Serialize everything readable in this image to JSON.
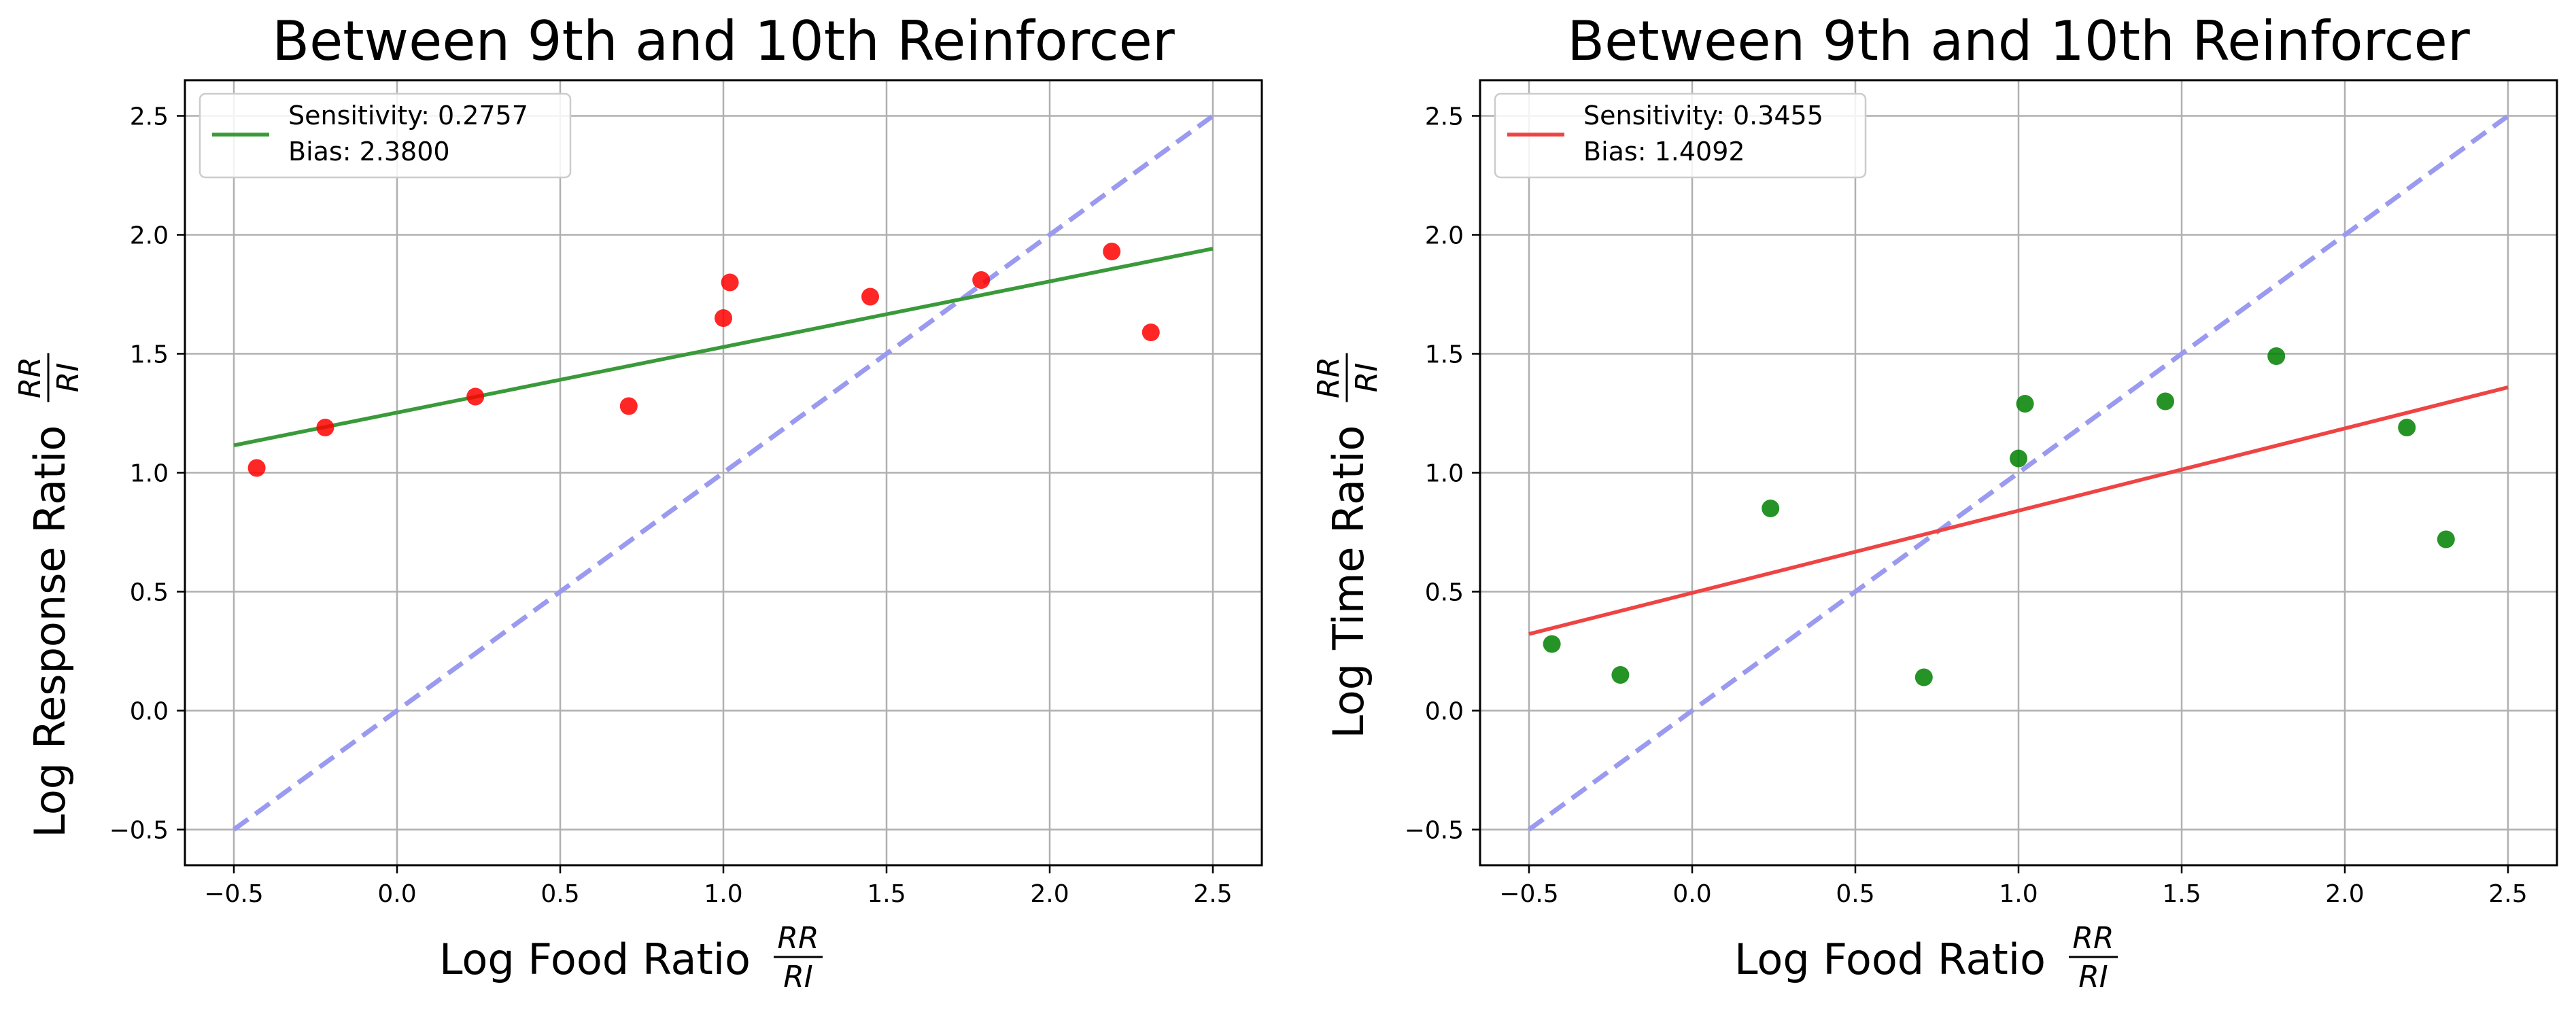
{
  "chart_data": [
    {
      "type": "scatter",
      "title": "Between 9th and 10th Reinforcer",
      "xlabel": "Log Food Ratio",
      "xlabel_frac": {
        "num": "RR",
        "den": "RI"
      },
      "ylabel": "Log Response Ratio",
      "ylabel_frac": {
        "num": "RR",
        "den": "RI"
      },
      "xlim": [
        -0.65,
        2.65
      ],
      "ylim": [
        -0.65,
        2.65
      ],
      "xticks": [
        "−0.5",
        "0.0",
        "0.5",
        "1.0",
        "1.5",
        "2.0",
        "2.5"
      ],
      "yticks": [
        "−0.5",
        "0.0",
        "0.5",
        "1.0",
        "1.5",
        "2.0",
        "2.5"
      ],
      "tick_values": [
        -0.5,
        0.0,
        0.5,
        1.0,
        1.5,
        2.0,
        2.5
      ],
      "grid": true,
      "legend_position": "upper-left",
      "legend": {
        "line1": "Sensitivity: 0.2757",
        "line2": " Bias: 2.3800"
      },
      "points": [
        {
          "x": -0.43,
          "y": 1.02
        },
        {
          "x": -0.22,
          "y": 1.19
        },
        {
          "x": 0.24,
          "y": 1.32
        },
        {
          "x": 0.71,
          "y": 1.28
        },
        {
          "x": 1.0,
          "y": 1.65
        },
        {
          "x": 1.02,
          "y": 1.8
        },
        {
          "x": 1.45,
          "y": 1.74
        },
        {
          "x": 1.79,
          "y": 1.81
        },
        {
          "x": 2.19,
          "y": 1.93
        },
        {
          "x": 2.31,
          "y": 1.59
        }
      ],
      "point_color": "#ff0000",
      "fit": {
        "slope": 0.2757,
        "x_start": -0.5,
        "x_end": 2.5,
        "y_start": 1.115,
        "y_end": 1.942
      },
      "fit_color": "#3a9a3a",
      "identity": {
        "x_start": -0.5,
        "x_end": 2.5
      },
      "identity_color": "#9a9af0"
    },
    {
      "type": "scatter",
      "title": "Between 9th and 10th Reinforcer",
      "xlabel": "Log Food Ratio",
      "xlabel_frac": {
        "num": "RR",
        "den": "RI"
      },
      "ylabel": "Log Time Ratio",
      "ylabel_frac": {
        "num": "RR",
        "den": "RI"
      },
      "xlim": [
        -0.65,
        2.65
      ],
      "ylim": [
        -0.65,
        2.65
      ],
      "xticks": [
        "−0.5",
        "0.0",
        "0.5",
        "1.0",
        "1.5",
        "2.0",
        "2.5"
      ],
      "yticks": [
        "−0.5",
        "0.0",
        "0.5",
        "1.0",
        "1.5",
        "2.0",
        "2.5"
      ],
      "tick_values": [
        -0.5,
        0.0,
        0.5,
        1.0,
        1.5,
        2.0,
        2.5
      ],
      "grid": true,
      "legend_position": "upper-left",
      "legend": {
        "line1": "Sensitivity: 0.3455",
        "line2": " Bias: 1.4092"
      },
      "points": [
        {
          "x": -0.43,
          "y": 0.28
        },
        {
          "x": -0.22,
          "y": 0.15
        },
        {
          "x": 0.24,
          "y": 0.85
        },
        {
          "x": 0.71,
          "y": 0.14
        },
        {
          "x": 1.0,
          "y": 1.06
        },
        {
          "x": 1.02,
          "y": 1.29
        },
        {
          "x": 1.45,
          "y": 1.3
        },
        {
          "x": 1.79,
          "y": 1.49
        },
        {
          "x": 2.19,
          "y": 1.19
        },
        {
          "x": 2.31,
          "y": 0.72
        }
      ],
      "point_color": "#008000",
      "fit": {
        "slope": 0.3455,
        "x_start": -0.5,
        "x_end": 2.5,
        "y_start": 0.322,
        "y_end": 1.359
      },
      "fit_color": "#ee4444",
      "identity": {
        "x_start": -0.5,
        "x_end": 2.5
      },
      "identity_color": "#9a9af0"
    }
  ]
}
